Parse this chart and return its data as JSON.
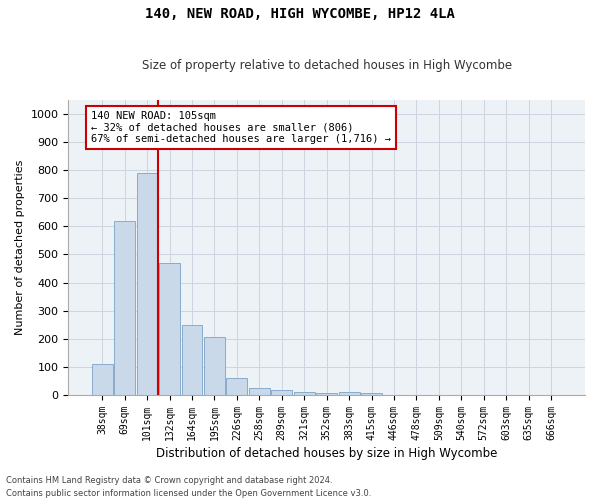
{
  "title1": "140, NEW ROAD, HIGH WYCOMBE, HP12 4LA",
  "title2": "Size of property relative to detached houses in High Wycombe",
  "xlabel": "Distribution of detached houses by size in High Wycombe",
  "ylabel": "Number of detached properties",
  "bar_labels": [
    "38sqm",
    "69sqm",
    "101sqm",
    "132sqm",
    "164sqm",
    "195sqm",
    "226sqm",
    "258sqm",
    "289sqm",
    "321sqm",
    "352sqm",
    "383sqm",
    "415sqm",
    "446sqm",
    "478sqm",
    "509sqm",
    "540sqm",
    "572sqm",
    "603sqm",
    "635sqm",
    "666sqm"
  ],
  "bar_values": [
    110,
    620,
    790,
    470,
    250,
    205,
    60,
    25,
    18,
    10,
    8,
    10,
    8,
    0,
    0,
    0,
    0,
    0,
    0,
    0,
    0
  ],
  "bar_color": "#c9d9ea",
  "bar_edge_color": "#7ba3c8",
  "vline_x_idx": 2.48,
  "vline_color": "#cc0000",
  "annotation_text": "140 NEW ROAD: 105sqm\n← 32% of detached houses are smaller (806)\n67% of semi-detached houses are larger (1,716) →",
  "annotation_box_color": "#ffffff",
  "annotation_box_edge": "#cc0000",
  "ylim": [
    0,
    1050
  ],
  "yticks": [
    0,
    100,
    200,
    300,
    400,
    500,
    600,
    700,
    800,
    900,
    1000
  ],
  "footnote1": "Contains HM Land Registry data © Crown copyright and database right 2024.",
  "footnote2": "Contains public sector information licensed under the Open Government Licence v3.0.",
  "grid_color": "#ccd5e0",
  "background_color": "#edf2f7"
}
